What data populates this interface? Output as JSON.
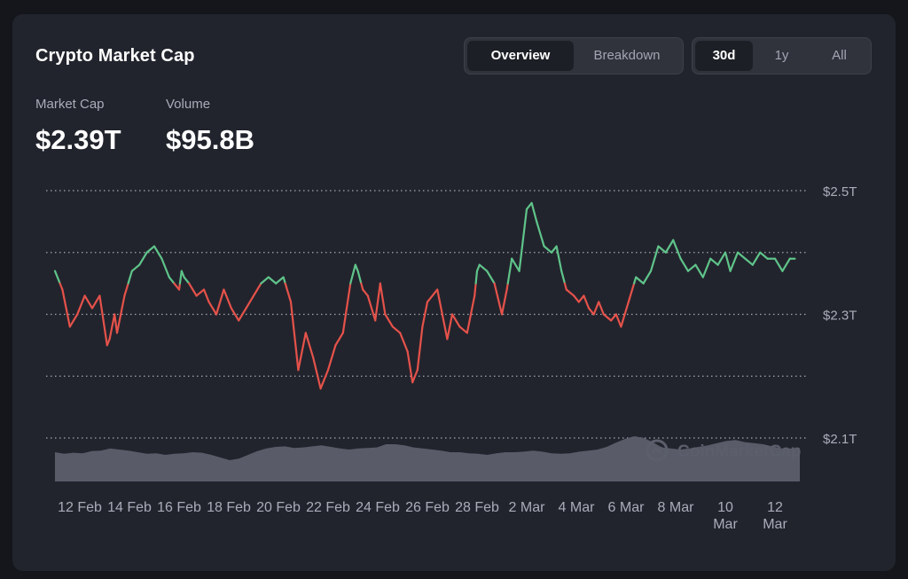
{
  "header": {
    "title": "Crypto Market Cap"
  },
  "view_tabs": [
    {
      "label": "Overview",
      "active": true
    },
    {
      "label": "Breakdown",
      "active": false
    }
  ],
  "range_tabs": [
    {
      "label": "30d",
      "active": true
    },
    {
      "label": "1y",
      "active": false
    },
    {
      "label": "All",
      "active": false
    }
  ],
  "stats": {
    "market_cap": {
      "label": "Market Cap",
      "value": "$2.39T"
    },
    "volume": {
      "label": "Volume",
      "value": "$95.8B"
    }
  },
  "watermark": "CoinMarketCap",
  "colors": {
    "up": "#5fc48a",
    "down": "#e5524a",
    "volume": "#5d606c",
    "grid": "#d0d2d8"
  },
  "chart_data": {
    "type": "line",
    "y_ticks": [
      {
        "value": 2.5,
        "label": "$2.5T"
      },
      {
        "value": 2.3,
        "label": "$2.3T"
      },
      {
        "value": 2.1,
        "label": "$2.1T"
      }
    ],
    "ylim": [
      2.1,
      2.5
    ],
    "gridlines": [
      2.1,
      2.2,
      2.3,
      2.4,
      2.5
    ],
    "baseline": 2.35,
    "x_labels": [
      {
        "day": 1,
        "label": "12 Feb"
      },
      {
        "day": 3,
        "label": "14 Feb"
      },
      {
        "day": 5,
        "label": "16 Feb"
      },
      {
        "day": 7,
        "label": "18 Feb"
      },
      {
        "day": 9,
        "label": "20 Feb"
      },
      {
        "day": 11,
        "label": "22 Feb"
      },
      {
        "day": 13,
        "label": "24 Feb"
      },
      {
        "day": 15,
        "label": "26 Feb"
      },
      {
        "day": 17,
        "label": "28 Feb"
      },
      {
        "day": 19,
        "label": "2 Mar"
      },
      {
        "day": 21,
        "label": "4 Mar"
      },
      {
        "day": 23,
        "label": "6 Mar"
      },
      {
        "day": 25,
        "label": "8 Mar"
      },
      {
        "day": 27,
        "label": "10 Mar"
      },
      {
        "day": 29,
        "label": "12 Mar"
      }
    ],
    "series": [
      {
        "x": [
          0,
          0.3,
          0.6,
          0.9,
          1.2,
          1.5,
          1.8,
          2.1,
          2.2,
          2.4,
          2.5,
          2.8,
          3.1,
          3.4,
          3.7,
          4.0,
          4.3,
          4.6,
          4.8,
          5.0,
          5.1,
          5.2,
          5.4,
          5.7,
          6.0,
          6.2,
          6.5,
          6.8,
          7.1,
          7.4,
          7.7,
          8.0,
          8.3,
          8.6,
          8.9,
          9.2,
          9.5,
          9.8,
          10.1,
          10.4,
          10.7,
          11.0,
          11.3,
          11.6,
          11.9,
          12.1,
          12.2,
          12.4,
          12.6,
          12.9,
          13.1,
          13.3,
          13.6,
          13.9,
          14.2,
          14.4,
          14.6,
          14.8,
          15.0,
          15.4,
          15.8,
          16.0,
          16.3,
          16.6,
          16.9,
          17.0,
          17.1,
          17.4,
          17.7,
          18.0,
          18.2,
          18.4,
          18.7,
          19.0,
          19.2,
          19.4,
          19.7,
          20.0,
          20.2,
          20.4,
          20.6,
          20.9,
          21.1,
          21.3,
          21.5,
          21.7,
          21.9,
          22.1,
          22.4,
          22.6,
          22.8,
          23.1,
          23.4,
          23.7,
          24.0,
          24.3,
          24.6,
          24.9,
          25.2,
          25.5,
          25.8,
          26.1,
          26.4,
          26.7,
          27.0,
          27.2,
          27.5,
          27.8,
          28.1,
          28.4,
          28.7,
          29.0,
          29.3,
          29.6,
          29.8
        ],
        "y": [
          2.37,
          2.34,
          2.28,
          2.3,
          2.33,
          2.31,
          2.33,
          2.25,
          2.26,
          2.3,
          2.27,
          2.33,
          2.37,
          2.38,
          2.4,
          2.41,
          2.39,
          2.36,
          2.35,
          2.34,
          2.37,
          2.36,
          2.35,
          2.33,
          2.34,
          2.32,
          2.3,
          2.34,
          2.31,
          2.29,
          2.31,
          2.33,
          2.35,
          2.36,
          2.35,
          2.36,
          2.32,
          2.21,
          2.27,
          2.23,
          2.18,
          2.21,
          2.25,
          2.27,
          2.35,
          2.38,
          2.37,
          2.34,
          2.33,
          2.29,
          2.35,
          2.3,
          2.28,
          2.27,
          2.24,
          2.19,
          2.21,
          2.28,
          2.32,
          2.34,
          2.26,
          2.3,
          2.28,
          2.27,
          2.33,
          2.37,
          2.38,
          2.37,
          2.35,
          2.3,
          2.34,
          2.39,
          2.37,
          2.47,
          2.48,
          2.45,
          2.41,
          2.4,
          2.41,
          2.37,
          2.34,
          2.33,
          2.32,
          2.33,
          2.31,
          2.3,
          2.32,
          2.3,
          2.29,
          2.3,
          2.28,
          2.32,
          2.36,
          2.35,
          2.37,
          2.41,
          2.4,
          2.42,
          2.39,
          2.37,
          2.38,
          2.36,
          2.39,
          2.38,
          2.4,
          2.37,
          2.4,
          2.39,
          2.38,
          2.4,
          2.39,
          2.39,
          2.37,
          2.39,
          2.39
        ]
      }
    ],
    "volume": [
      0.55,
      0.52,
      0.54,
      0.53,
      0.57,
      0.58,
      0.62,
      0.6,
      0.58,
      0.55,
      0.52,
      0.53,
      0.5,
      0.52,
      0.53,
      0.55,
      0.54,
      0.5,
      0.45,
      0.4,
      0.43,
      0.5,
      0.57,
      0.62,
      0.65,
      0.66,
      0.63,
      0.64,
      0.66,
      0.68,
      0.65,
      0.62,
      0.6,
      0.62,
      0.63,
      0.64,
      0.7,
      0.7,
      0.68,
      0.64,
      0.62,
      0.6,
      0.58,
      0.55,
      0.55,
      0.53,
      0.52,
      0.5,
      0.53,
      0.55,
      0.55,
      0.56,
      0.58,
      0.56,
      0.53,
      0.52,
      0.53,
      0.56,
      0.58,
      0.6,
      0.65,
      0.73,
      0.8,
      0.85,
      0.82,
      0.74,
      0.64,
      0.62,
      0.6,
      0.62,
      0.65,
      0.68,
      0.72,
      0.76,
      0.78,
      0.74,
      0.72,
      0.7,
      0.66,
      0.62,
      0.62,
      0.63
    ]
  }
}
